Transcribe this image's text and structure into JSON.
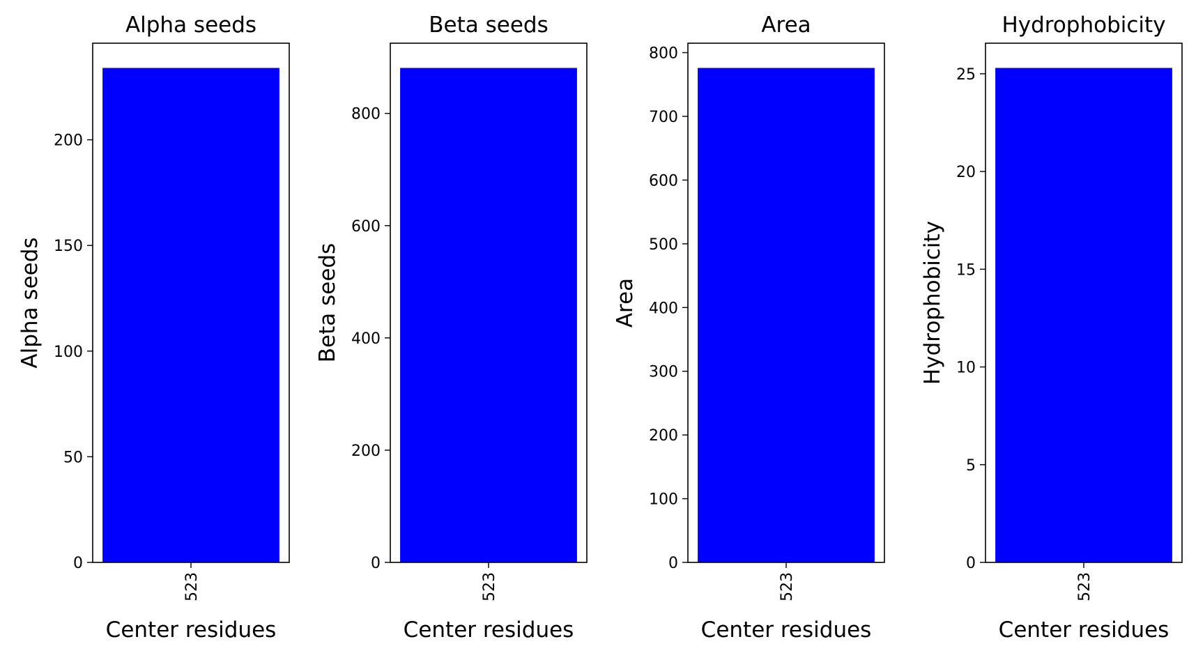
{
  "figure": {
    "background": "#ffffff",
    "bar_color": "#0000ff"
  },
  "chart_data": [
    {
      "type": "bar",
      "title": "Alpha seeds",
      "xlabel": "Center residues",
      "ylabel": "Alpha seeds",
      "categories": [
        "523"
      ],
      "values": [
        234
      ],
      "ylim": [
        0,
        245.7
      ],
      "yticks": [
        0,
        50,
        100,
        150,
        200
      ],
      "grid": false,
      "legend": "none",
      "xtick_rotation": 90
    },
    {
      "type": "bar",
      "title": "Beta seeds",
      "xlabel": "Center residues",
      "ylabel": "Beta seeds",
      "categories": [
        "523"
      ],
      "values": [
        881
      ],
      "ylim": [
        0,
        925.05
      ],
      "yticks": [
        0,
        200,
        400,
        600,
        800
      ],
      "grid": false,
      "legend": "none",
      "xtick_rotation": 90
    },
    {
      "type": "bar",
      "title": "Area",
      "xlabel": "Center residues",
      "ylabel": "Area",
      "categories": [
        "523"
      ],
      "values": [
        776
      ],
      "ylim": [
        0,
        814.8
      ],
      "yticks": [
        0,
        100,
        200,
        300,
        400,
        500,
        600,
        700,
        800
      ],
      "grid": false,
      "legend": "none",
      "xtick_rotation": 90
    },
    {
      "type": "bar",
      "title": "Hydrophobicity",
      "xlabel": "Center residues",
      "ylabel": "Hydrophobicity",
      "categories": [
        "523"
      ],
      "values": [
        25.3
      ],
      "ylim": [
        0,
        26.565
      ],
      "yticks": [
        0,
        5,
        10,
        15,
        20,
        25
      ],
      "grid": false,
      "legend": "none",
      "xtick_rotation": 90
    }
  ]
}
